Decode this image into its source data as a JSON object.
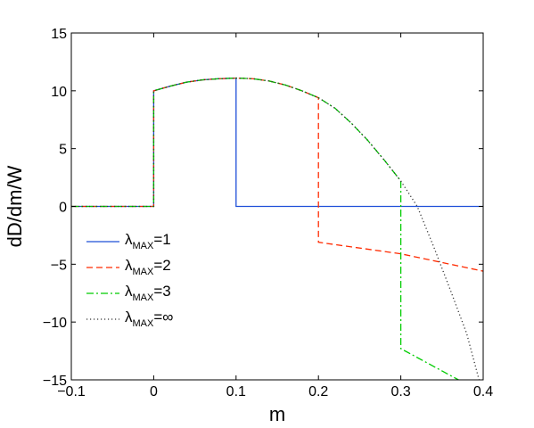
{
  "chart_data": {
    "type": "line",
    "xlabel": "m",
    "ylabel": "dD/dm/W",
    "xlim": [
      -0.1,
      0.4
    ],
    "ylim": [
      -15,
      15
    ],
    "xticks": [
      -0.1,
      0,
      0.1,
      0.2,
      0.3,
      0.4
    ],
    "xtick_labels": [
      "−0.1",
      "0",
      "0.1",
      "0.2",
      "0.3",
      "0.4"
    ],
    "yticks": [
      -15,
      -10,
      -5,
      0,
      5,
      10,
      15
    ],
    "ytick_labels": [
      "−15",
      "−10",
      "−5",
      "0",
      "5",
      "10",
      "15"
    ],
    "grid": false,
    "legend_placement": "lower-left",
    "series": [
      {
        "name": "λ",
        "name_sub": "MAX",
        "name_suffix": "=1",
        "color": "#1f4fd8",
        "style": "solid",
        "x": [
          -0.1,
          0.0,
          0.0,
          0.02,
          0.04,
          0.06,
          0.08,
          0.1,
          0.1,
          0.4
        ],
        "y": [
          0,
          0,
          10,
          10.4,
          10.75,
          10.95,
          11.05,
          11.1,
          0,
          0
        ]
      },
      {
        "name": "λ",
        "name_sub": "MAX",
        "name_suffix": "=2",
        "color": "#ff2a00",
        "style": "dashed",
        "x": [
          -0.1,
          0.0,
          0.0,
          0.02,
          0.04,
          0.06,
          0.08,
          0.1,
          0.12,
          0.14,
          0.16,
          0.18,
          0.2,
          0.2,
          0.3,
          0.4
        ],
        "y": [
          0,
          0,
          10,
          10.4,
          10.75,
          10.95,
          11.05,
          11.1,
          11.05,
          10.85,
          10.5,
          10.0,
          9.4,
          -3.1,
          -4.1,
          -5.6
        ]
      },
      {
        "name": "λ",
        "name_sub": "MAX",
        "name_suffix": "=3",
        "color": "#00cc00",
        "style": "dashdot",
        "x": [
          -0.1,
          0.0,
          0.0,
          0.02,
          0.04,
          0.06,
          0.08,
          0.1,
          0.12,
          0.14,
          0.16,
          0.18,
          0.2,
          0.22,
          0.24,
          0.26,
          0.28,
          0.3,
          0.3,
          0.37
        ],
        "y": [
          0,
          0,
          10,
          10.4,
          10.75,
          10.95,
          11.05,
          11.1,
          11.05,
          10.85,
          10.5,
          10.0,
          9.4,
          8.5,
          7.2,
          5.7,
          4.0,
          2.2,
          -12.3,
          -15
        ]
      },
      {
        "name": "λ",
        "name_sub": "MAX",
        "name_suffix": "=∞",
        "color": "#333333",
        "style": "dotted",
        "x": [
          -0.1,
          0.0,
          0.0,
          0.02,
          0.04,
          0.06,
          0.08,
          0.1,
          0.12,
          0.14,
          0.16,
          0.18,
          0.2,
          0.22,
          0.24,
          0.26,
          0.28,
          0.3,
          0.32,
          0.34,
          0.36,
          0.38,
          0.395
        ],
        "y": [
          0,
          0,
          10,
          10.4,
          10.75,
          10.95,
          11.05,
          11.1,
          11.05,
          10.85,
          10.5,
          10.0,
          9.4,
          8.5,
          7.2,
          5.7,
          4.0,
          2.2,
          0.0,
          -3.5,
          -7.2,
          -11.0,
          -15
        ]
      }
    ]
  }
}
